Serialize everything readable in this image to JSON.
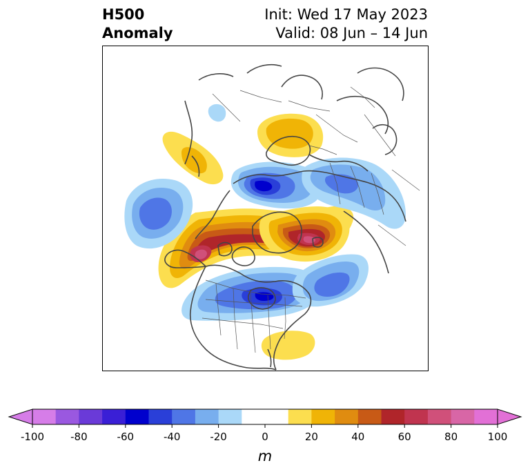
{
  "header": {
    "title_line1": "H500",
    "title_line2": "Anomaly",
    "init_text": "Init: Wed 17 May 2023",
    "valid_text": "Valid: 08 Jun – 14 Jun"
  },
  "map": {
    "projection": "north-polar-stereographic",
    "features": [
      {
        "name": "positive-anomaly-north-central-us-canada",
        "sign": "positive",
        "peak": 80
      },
      {
        "name": "positive-anomaly-western-greenland-arctic",
        "sign": "positive",
        "peak": 90
      },
      {
        "name": "positive-anomaly-scandinavia",
        "sign": "positive",
        "peak": 20
      },
      {
        "name": "positive-anomaly-east-asia",
        "sign": "positive",
        "peak": 30
      },
      {
        "name": "positive-anomaly-florida-gulf",
        "sign": "positive",
        "peak": 10
      },
      {
        "name": "negative-anomaly-siberia",
        "sign": "negative",
        "peak": -50
      },
      {
        "name": "negative-anomaly-russia-central",
        "sign": "negative",
        "peak": -30
      },
      {
        "name": "negative-anomaly-north-pacific",
        "sign": "negative",
        "peak": -40
      },
      {
        "name": "negative-anomaly-eastern-us-canada",
        "sign": "negative",
        "peak": -50
      },
      {
        "name": "negative-anomaly-north-atlantic",
        "sign": "negative",
        "peak": -40
      }
    ]
  },
  "colorbar": {
    "unit_label": "m",
    "min": -100,
    "max": 100,
    "step": 10,
    "extend": "both",
    "tick_values": [
      -100,
      -80,
      -60,
      -40,
      -20,
      0,
      20,
      40,
      60,
      80,
      100
    ],
    "tick_labels": [
      "-100",
      "-80",
      "-60",
      "-40",
      "-20",
      "0",
      "20",
      "40",
      "60",
      "80",
      "100"
    ],
    "colors": [
      "#d67de8",
      "#9a58e0",
      "#6a3ad8",
      "#3a1fd6",
      "#0000cd",
      "#2a3fd8",
      "#4f76e6",
      "#78aeee",
      "#aad8f8",
      "#ffffff",
      "#ffffff",
      "#fcde4f",
      "#f0b406",
      "#e08c10",
      "#c85a16",
      "#b0252a",
      "#c0344f",
      "#d0507a",
      "#d866a6",
      "#e270d6"
    ],
    "extend_low_color": "#d67de8",
    "extend_high_color": "#e270d6"
  }
}
